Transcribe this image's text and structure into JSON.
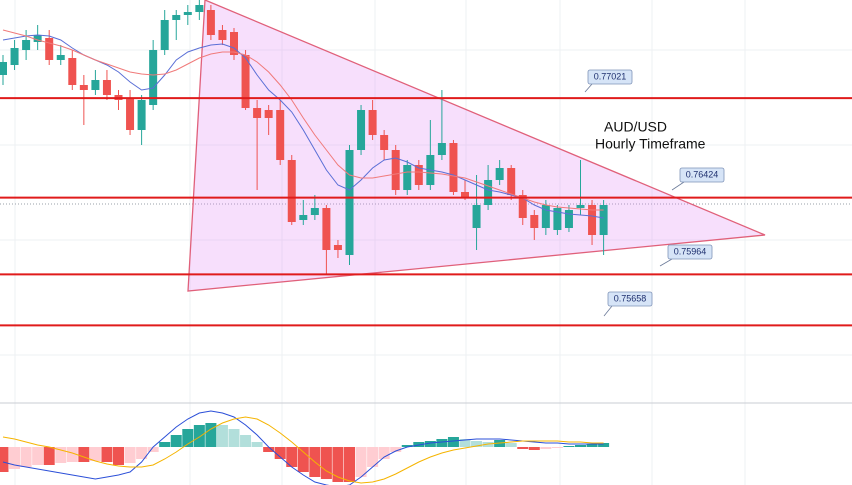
{
  "chart_data": [
    {
      "type": "candlestick",
      "annotations": [
        "AUD/USD",
        "Hourly Timeframe"
      ],
      "ylim": [
        0.7521,
        0.7761
      ],
      "up_color": "#26a69a",
      "down_color": "#ef5350",
      "open": [
        0.7716,
        0.7722,
        0.7731,
        0.77358,
        0.77382,
        0.7725,
        0.77262,
        0.771,
        0.7707,
        0.7713,
        0.7704,
        0.77022,
        0.7683,
        0.7698,
        0.7731,
        0.7749,
        0.7752,
        0.77538,
        0.7755,
        0.7743,
        0.77418,
        0.7728,
        0.76962,
        0.7695,
        0.7695,
        0.7665,
        0.7629,
        0.7632,
        0.76362,
        0.7614,
        0.7608,
        0.7671,
        0.7695,
        0.768,
        0.7671,
        0.7647,
        0.7662,
        0.765,
        0.7668,
        0.76752,
        0.76458,
        0.76242,
        0.7638,
        0.7653,
        0.76602,
        0.7644,
        0.7632,
        0.76242,
        0.7623,
        0.76242,
        0.76362,
        0.7638,
        0.762
      ],
      "high": [
        0.7728,
        0.7737,
        0.7743,
        0.7746,
        0.7743,
        0.7734,
        0.7731,
        0.7716,
        0.7719,
        0.7719,
        0.7707,
        0.7707,
        0.7704,
        0.7737,
        0.7755,
        0.7755,
        0.7758,
        0.7761,
        0.7758,
        0.7746,
        0.77442,
        0.7731,
        0.7701,
        0.7698,
        0.7701,
        0.7668,
        0.7641,
        0.7644,
        0.7638,
        0.7617,
        0.7674,
        0.7698,
        0.7701,
        0.7683,
        0.7674,
        0.7665,
        0.7665,
        0.7689,
        0.7707,
        0.7677,
        0.7653,
        0.7656,
        0.7662,
        0.7665,
        0.7662,
        0.7647,
        0.7635,
        0.7641,
        0.7638,
        0.7638,
        0.7665,
        0.7641,
        0.7641
      ],
      "low": [
        0.771,
        0.7719,
        0.7725,
        0.7731,
        0.7722,
        0.7722,
        0.7707,
        0.7686,
        0.7704,
        0.7701,
        0.7695,
        0.768,
        0.7674,
        0.7695,
        0.7728,
        0.7737,
        0.7746,
        0.7749,
        0.7737,
        0.7734,
        0.7725,
        0.7695,
        0.7647,
        0.768,
        0.7662,
        0.7626,
        0.7626,
        0.7629,
        0.7596,
        0.76062,
        0.7602,
        0.7668,
        0.7677,
        0.7665,
        0.7644,
        0.7644,
        0.7647,
        0.7647,
        0.7665,
        0.7644,
        0.7641,
        0.7611,
        0.7635,
        0.765,
        0.7641,
        0.7626,
        0.7617,
        0.762,
        0.762,
        0.76218,
        0.7632,
        0.7614,
        0.7608
      ],
      "close": [
        0.77238,
        0.77322,
        0.7737,
        0.774,
        0.7725,
        0.7728,
        0.771,
        0.7707,
        0.7713,
        0.7704,
        0.7701,
        0.7683,
        0.7701,
        0.7731,
        0.7749,
        0.7752,
        0.77538,
        0.7758,
        0.774,
        0.7737,
        0.7728,
        0.76962,
        0.76902,
        0.76902,
        0.7665,
        0.76278,
        0.7632,
        0.76362,
        0.7611,
        0.7611,
        0.7671,
        0.7695,
        0.768,
        0.7671,
        0.7647,
        0.7662,
        0.765,
        0.7668,
        0.76752,
        0.76458,
        0.76422,
        0.7638,
        0.7653,
        0.76602,
        0.7644,
        0.76302,
        0.76242,
        0.7638,
        0.76362,
        0.7635,
        0.7638,
        0.762,
        0.7638
      ],
      "lines": [
        {
          "color": "#5a6fd6",
          "values": [
            0.7737,
            0.77382,
            0.77394,
            0.774,
            0.77394,
            0.7737,
            0.77322,
            0.7728,
            0.7725,
            0.7722,
            0.77178,
            0.77118,
            0.7707,
            0.77082,
            0.7716,
            0.7725,
            0.77298,
            0.77322,
            0.7734,
            0.77346,
            0.77322,
            0.77262,
            0.7716,
            0.7707,
            0.7701,
            0.76938,
            0.7683,
            0.7671,
            0.7659,
            0.765,
            0.7647,
            0.7653,
            0.76602,
            0.7665,
            0.76662,
            0.76638,
            0.76602,
            0.7659,
            0.76578,
            0.7656,
            0.7653,
            0.765,
            0.7647,
            0.76458,
            0.7644,
            0.76422,
            0.7638,
            0.7635,
            0.76338,
            0.76326,
            0.7632,
            0.76314,
            0.76302
          ]
        },
        {
          "color": "#f07a7a",
          "values": [
            0.7743,
            0.77412,
            0.77394,
            0.7737,
            0.77352,
            0.77334,
            0.7731,
            0.7728,
            0.7725,
            0.77226,
            0.77202,
            0.77178,
            0.77166,
            0.7716,
            0.77166,
            0.7719,
            0.77226,
            0.77262,
            0.77286,
            0.77298,
            0.77298,
            0.7728,
            0.77238,
            0.77178,
            0.771,
            0.7701,
            0.76902,
            0.768,
            0.7671,
            0.7662,
            0.7656,
            0.76542,
            0.76542,
            0.76554,
            0.76566,
            0.76578,
            0.76578,
            0.76572,
            0.76566,
            0.76554,
            0.76542,
            0.76518,
            0.76494,
            0.7647,
            0.76446,
            0.76422,
            0.76398,
            0.7638,
            0.76368,
            0.76362,
            0.76356,
            0.7635,
            0.7635
          ]
        }
      ],
      "level_color": "#e01b1b",
      "levels": [
        0.77021,
        0.76424,
        0.75964,
        0.75658
      ]
    },
    {
      "type": "macd",
      "ylim": [
        -38,
        38
      ],
      "histogram": [
        -25,
        -22,
        -20,
        -18,
        -18,
        -16,
        -15,
        -15,
        -14,
        -15,
        -18,
        -16,
        -12,
        -5,
        5,
        12,
        18,
        22,
        24,
        22,
        18,
        12,
        5,
        -5,
        -12,
        -20,
        -25,
        -30,
        -32,
        -35,
        -35,
        -30,
        -20,
        -12,
        -5,
        2,
        5,
        6,
        8,
        10,
        8,
        6,
        5,
        7,
        4,
        -2,
        -3,
        -2,
        -1,
        1,
        2,
        3,
        4
      ],
      "macd": {
        "color": "#2b4fd8",
        "values": [
          -15,
          -18,
          -20,
          -22,
          -24,
          -26,
          -28,
          -30,
          -32,
          -30,
          -28,
          -25,
          -15,
          0,
          10,
          20,
          28,
          34,
          36,
          34,
          30,
          22,
          12,
          0,
          -10,
          -20,
          -28,
          -35,
          -38,
          -40,
          -38,
          -30,
          -20,
          -10,
          -4,
          0,
          2,
          4,
          5,
          6,
          7,
          8,
          8,
          8,
          7,
          6,
          5,
          4,
          4,
          3,
          3,
          3,
          3
        ]
      },
      "signal": {
        "color": "#f5b400",
        "values": [
          10,
          8,
          5,
          2,
          0,
          -3,
          -6,
          -10,
          -14,
          -17,
          -19,
          -20,
          -20,
          -18,
          -12,
          -5,
          3,
          10,
          18,
          24,
          28,
          30,
          28,
          22,
          14,
          5,
          -5,
          -15,
          -24,
          -30,
          -34,
          -36,
          -35,
          -32,
          -27,
          -21,
          -15,
          -10,
          -6,
          -3,
          -1,
          1,
          3,
          4,
          5,
          6,
          6,
          6,
          6,
          5,
          5,
          4,
          4
        ]
      }
    }
  ]
}
